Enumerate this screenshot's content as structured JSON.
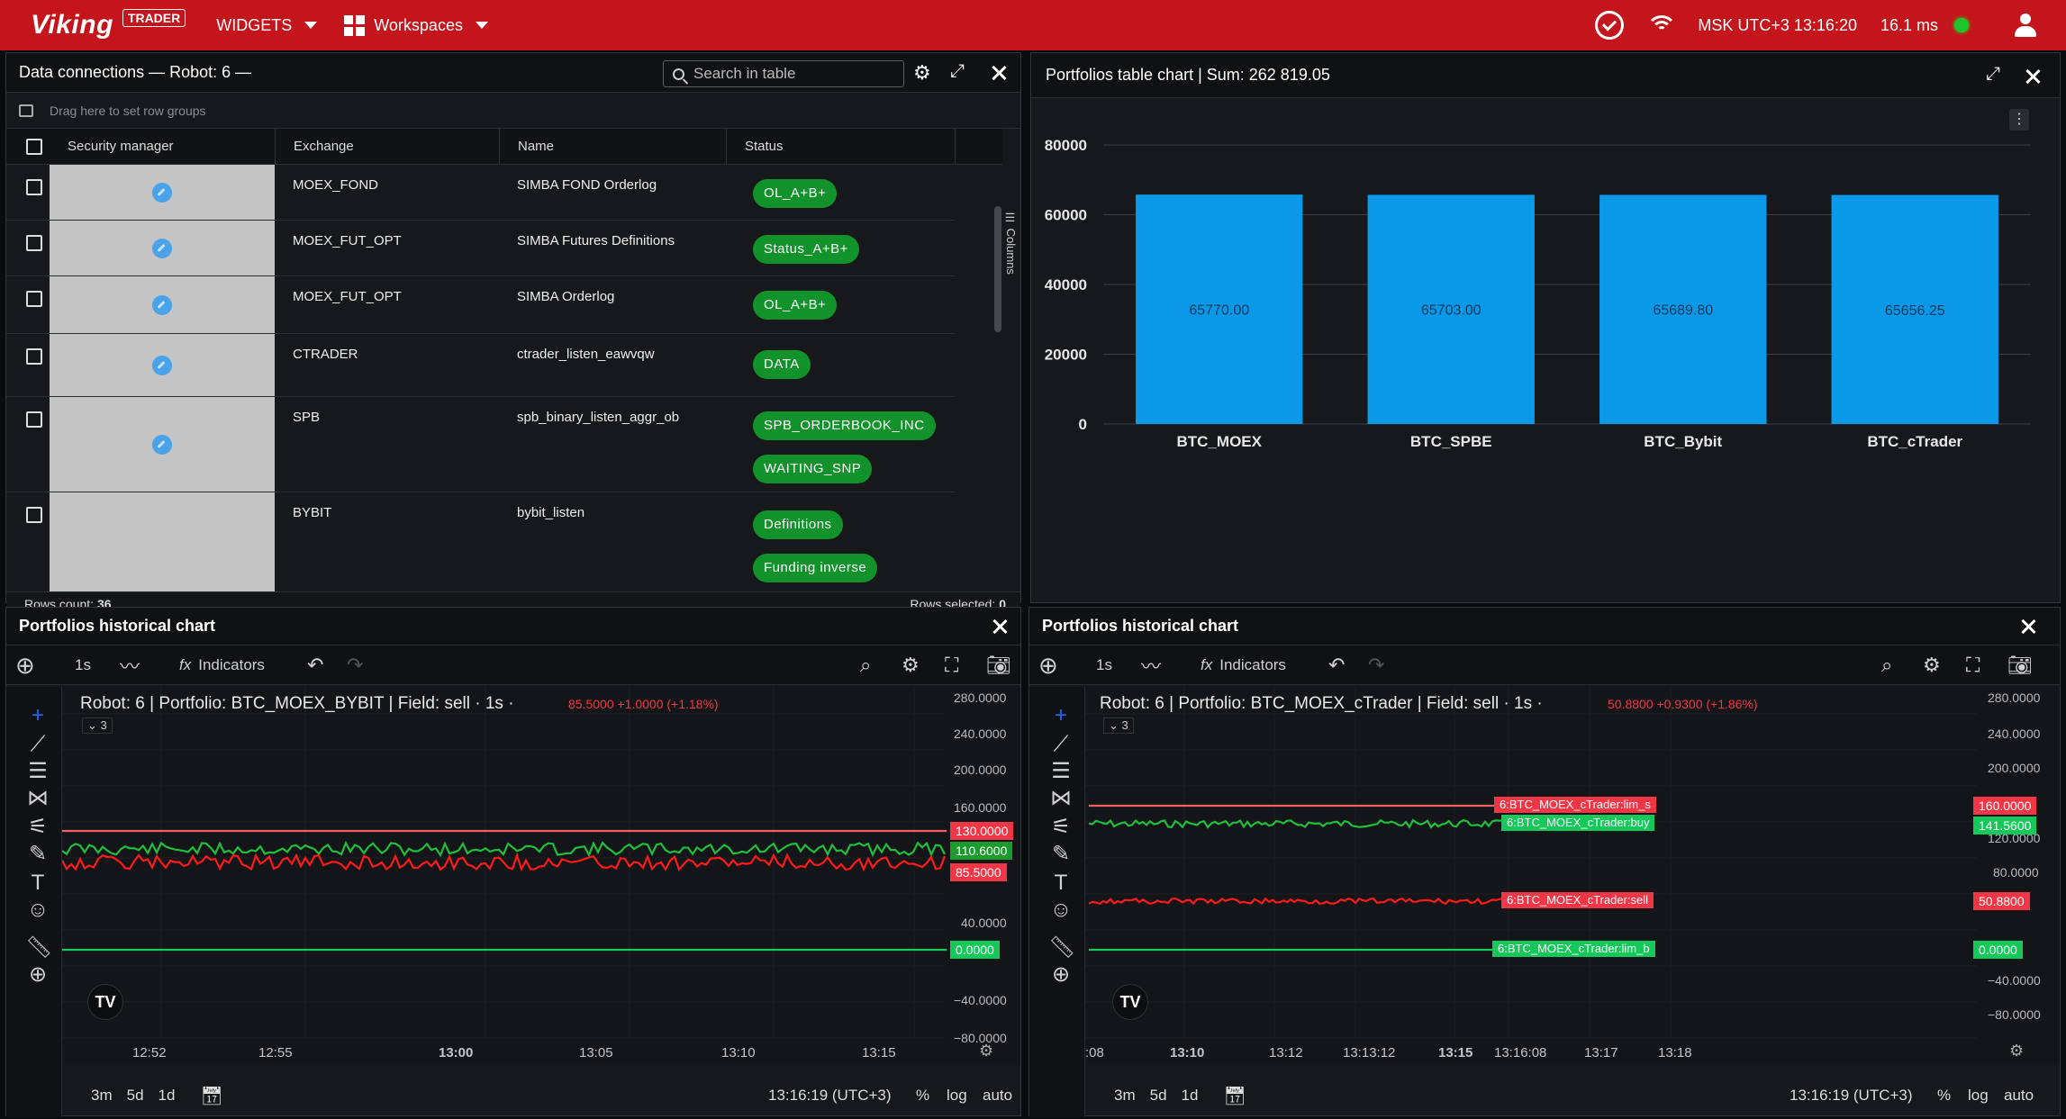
{
  "topbar": {
    "logo": "Viking",
    "badge": "TRADER",
    "widgets": "WIDGETS",
    "workspaces": "Workspaces",
    "clock": "MSK UTC+3 13:16:20",
    "latency": "16.1 ms"
  },
  "data_conn": {
    "title": "Data connections — Robot: 6 —",
    "search_placeholder": "Search in table",
    "group_hint": "Drag here to set row groups",
    "columns": [
      "Security manager",
      "Exchange",
      "Name",
      "Status"
    ],
    "columns_tab": "Columns",
    "rows": [
      {
        "exchange": "MOEX_FOND",
        "name": "SIMBA FOND Orderlog",
        "status": [
          "OL_A+B+"
        ]
      },
      {
        "exchange": "MOEX_FUT_OPT",
        "name": "SIMBA Futures Definitions",
        "status": [
          "Status_A+B+"
        ]
      },
      {
        "exchange": "MOEX_FUT_OPT",
        "name": "SIMBA Orderlog",
        "status": [
          "OL_A+B+"
        ]
      },
      {
        "exchange": "CTRADER",
        "name": "ctrader_listen_eawvqw",
        "status": [
          "DATA"
        ]
      },
      {
        "exchange": "SPB",
        "name": "spb_binary_listen_aggr_ob",
        "status": [
          "SPB_ORDERBOOK_INC",
          "WAITING_SNP"
        ]
      },
      {
        "exchange": "BYBIT",
        "name": "bybit_listen",
        "status": [
          "Definitions",
          "Funding inverse"
        ]
      }
    ],
    "rows_count_label": "Rows count:",
    "rows_count": "36",
    "rows_selected_label": "Rows selected:",
    "rows_selected": "0"
  },
  "bar_chart": {
    "title": "Portfolios table chart | Sum: 262 819.05"
  },
  "chart_data": {
    "type": "bar",
    "categories": [
      "BTC_MOEX",
      "BTC_SPBE",
      "BTC_Bybit",
      "BTC_cTrader"
    ],
    "values": [
      65770.0,
      65703.0,
      65689.8,
      65656.25
    ],
    "value_labels": [
      "65770.00",
      "65703.00",
      "65689.80",
      "65656.25"
    ],
    "yticks": [
      "0",
      "20000",
      "40000",
      "60000",
      "80000"
    ],
    "ylim": [
      0,
      80000
    ],
    "color": "#0a99e8",
    "grid": true
  },
  "hist_left": {
    "panel_title": "Portfolios historical chart",
    "interval": "1s",
    "indicators": "Indicators",
    "collapsed_count": "3",
    "title": "Robot: 6 | Portfolio: BTC_MOEX_BYBIT | Field: sell · 1s ·",
    "change": "85.5000  +1.0000 (+1.18%)",
    "yticks": [
      "280.0000",
      "240.0000",
      "200.0000",
      "160.0000",
      "40.0000",
      "−40.0000",
      "−80.0000"
    ],
    "tags": [
      {
        "text": "130.0000",
        "color": "#f23645"
      },
      {
        "text": "110.6000",
        "color": "#089981"
      },
      {
        "text": "85.5000",
        "color": "#f23645"
      },
      {
        "text": "0.0000",
        "color": "#14c85a"
      }
    ],
    "xticks": [
      "12:52",
      "12:55",
      "13:00",
      "13:05",
      "13:10",
      "13:15"
    ],
    "ranges": [
      "3m",
      "5d",
      "1d"
    ],
    "time": "13:16:19 (UTC+3)",
    "pct": "%",
    "log": "log",
    "auto": "auto"
  },
  "hist_right": {
    "panel_title": "Portfolios historical chart",
    "interval": "1s",
    "indicators": "Indicators",
    "collapsed_count": "3",
    "title": "Robot: 6 | Portfolio: BTC_MOEX_cTrader | Field: sell · 1s ·",
    "change": "50.8800  +0.9300 (+1.86%)",
    "yticks": [
      "280.0000",
      "240.0000",
      "200.0000",
      "120.0000",
      "80.0000",
      "−40.0000",
      "−80.0000"
    ],
    "tags": [
      {
        "name": "6:BTC_MOEX_cTrader:lim_s",
        "value": "160.0000",
        "color": "#f23645"
      },
      {
        "name": "6:BTC_MOEX_cTrader:buy",
        "value": "141.5600",
        "color": "#14c85a"
      },
      {
        "name": "6:BTC_MOEX_cTrader:sell",
        "value": "50.8800",
        "color": "#f23645"
      },
      {
        "name": "6:BTC_MOEX_cTrader:lim_b",
        "value": "0.0000",
        "color": "#14c85a"
      }
    ],
    "xticks": [
      ":08",
      "13:10",
      "13:12",
      "13:13:12",
      "13:15",
      "13:16:08",
      "13:17",
      "13:18"
    ],
    "ranges": [
      "3m",
      "5d",
      "1d"
    ],
    "time": "13:16:19 (UTC+3)",
    "pct": "%",
    "log": "log",
    "auto": "auto"
  }
}
